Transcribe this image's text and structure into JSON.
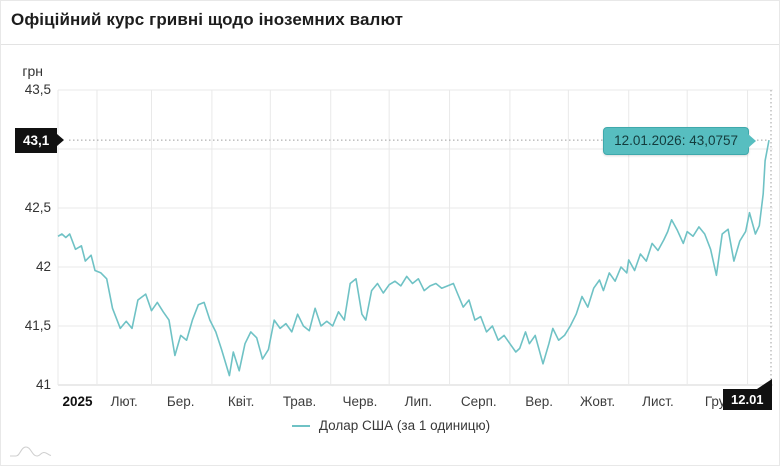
{
  "header": {
    "title": "Офіційний курс гривні щодо іноземних валют"
  },
  "chart": {
    "y_axis_title": "грн",
    "cursor": {
      "y_label": "43,1",
      "x_label": "12.01",
      "tooltip": "12.01.2026: 43,0757"
    },
    "legend": {
      "label": "Долар США (за 1 одиницю)"
    },
    "colors": {
      "line": "#6fc2c5",
      "tooltip_bg": "#57bec0",
      "tooltip_border": "#3fa9ac",
      "tooltip_text": "#143c3d",
      "grid": "#e9e9e9",
      "axis_line": "#d6d6d6",
      "crosshair": "#9f9f9f",
      "badge_bg": "#111111",
      "badge_text": "#ffffff"
    }
  },
  "chart_data": {
    "type": "line",
    "title": "Офіційний курс гривні щодо іноземних валют",
    "xlabel": "",
    "ylabel": "грн",
    "ylim": [
      41,
      43.5
    ],
    "grid": true,
    "legend_position": "bottom",
    "y_ticks": [
      43.5,
      43,
      42.5,
      42,
      41.5,
      41
    ],
    "y_tick_labels": [
      "43,5",
      "43",
      "42,5",
      "42",
      "41,5",
      "41"
    ],
    "x_range": [
      "2025-01-12",
      "2026-01-12"
    ],
    "x_tick_labels": [
      {
        "label": "2025",
        "anchor": "2025-01-22",
        "bold": true
      },
      {
        "label": "Лют.",
        "anchor": "2025-02-15",
        "bold": false
      },
      {
        "label": "Бер.",
        "anchor": "2025-03-16",
        "bold": false
      },
      {
        "label": "Квіт.",
        "anchor": "2025-04-16",
        "bold": false
      },
      {
        "label": "Трав.",
        "anchor": "2025-05-16",
        "bold": false
      },
      {
        "label": "Черв.",
        "anchor": "2025-06-16",
        "bold": false
      },
      {
        "label": "Лип.",
        "anchor": "2025-07-16",
        "bold": false
      },
      {
        "label": "Серп.",
        "anchor": "2025-08-16",
        "bold": false
      },
      {
        "label": "Вер.",
        "anchor": "2025-09-16",
        "bold": false
      },
      {
        "label": "Жовт.",
        "anchor": "2025-10-16",
        "bold": false
      },
      {
        "label": "Лист.",
        "anchor": "2025-11-16",
        "bold": false
      },
      {
        "label": "Гру.",
        "anchor": "2025-12-16",
        "bold": false
      }
    ],
    "series": [
      {
        "name": "Долар США (за 1 одиницю)",
        "points": [
          [
            "2025-01-12",
            42.26
          ],
          [
            "2025-01-14",
            42.28
          ],
          [
            "2025-01-16",
            42.25
          ],
          [
            "2025-01-18",
            42.28
          ],
          [
            "2025-01-21",
            42.15
          ],
          [
            "2025-01-24",
            42.18
          ],
          [
            "2025-01-26",
            42.05
          ],
          [
            "2025-01-29",
            42.1
          ],
          [
            "2025-01-31",
            41.97
          ],
          [
            "2025-02-03",
            41.95
          ],
          [
            "2025-02-06",
            41.9
          ],
          [
            "2025-02-09",
            41.65
          ],
          [
            "2025-02-13",
            41.48
          ],
          [
            "2025-02-16",
            41.54
          ],
          [
            "2025-02-19",
            41.48
          ],
          [
            "2025-02-22",
            41.72
          ],
          [
            "2025-02-26",
            41.77
          ],
          [
            "2025-03-01",
            41.63
          ],
          [
            "2025-03-04",
            41.7
          ],
          [
            "2025-03-07",
            41.62
          ],
          [
            "2025-03-10",
            41.55
          ],
          [
            "2025-03-13",
            41.25
          ],
          [
            "2025-03-16",
            41.42
          ],
          [
            "2025-03-19",
            41.38
          ],
          [
            "2025-03-22",
            41.55
          ],
          [
            "2025-03-25",
            41.68
          ],
          [
            "2025-03-28",
            41.7
          ],
          [
            "2025-03-31",
            41.55
          ],
          [
            "2025-04-03",
            41.45
          ],
          [
            "2025-04-06",
            41.3
          ],
          [
            "2025-04-10",
            41.08
          ],
          [
            "2025-04-12",
            41.28
          ],
          [
            "2025-04-15",
            41.12
          ],
          [
            "2025-04-18",
            41.35
          ],
          [
            "2025-04-21",
            41.45
          ],
          [
            "2025-04-24",
            41.4
          ],
          [
            "2025-04-27",
            41.22
          ],
          [
            "2025-04-30",
            41.3
          ],
          [
            "2025-05-03",
            41.55
          ],
          [
            "2025-05-06",
            41.48
          ],
          [
            "2025-05-09",
            41.52
          ],
          [
            "2025-05-12",
            41.45
          ],
          [
            "2025-05-15",
            41.6
          ],
          [
            "2025-05-18",
            41.5
          ],
          [
            "2025-05-21",
            41.46
          ],
          [
            "2025-05-24",
            41.65
          ],
          [
            "2025-05-27",
            41.5
          ],
          [
            "2025-05-30",
            41.54
          ],
          [
            "2025-06-02",
            41.5
          ],
          [
            "2025-06-05",
            41.62
          ],
          [
            "2025-06-08",
            41.55
          ],
          [
            "2025-06-11",
            41.86
          ],
          [
            "2025-06-14",
            41.9
          ],
          [
            "2025-06-17",
            41.6
          ],
          [
            "2025-06-19",
            41.55
          ],
          [
            "2025-06-22",
            41.8
          ],
          [
            "2025-06-25",
            41.86
          ],
          [
            "2025-06-28",
            41.78
          ],
          [
            "2025-07-01",
            41.85
          ],
          [
            "2025-07-04",
            41.88
          ],
          [
            "2025-07-07",
            41.84
          ],
          [
            "2025-07-10",
            41.92
          ],
          [
            "2025-07-13",
            41.86
          ],
          [
            "2025-07-16",
            41.9
          ],
          [
            "2025-07-19",
            41.8
          ],
          [
            "2025-07-22",
            41.84
          ],
          [
            "2025-07-25",
            41.86
          ],
          [
            "2025-07-28",
            41.82
          ],
          [
            "2025-07-31",
            41.84
          ],
          [
            "2025-08-03",
            41.86
          ],
          [
            "2025-08-05",
            41.78
          ],
          [
            "2025-08-08",
            41.66
          ],
          [
            "2025-08-11",
            41.72
          ],
          [
            "2025-08-14",
            41.55
          ],
          [
            "2025-08-17",
            41.58
          ],
          [
            "2025-08-20",
            41.45
          ],
          [
            "2025-08-23",
            41.5
          ],
          [
            "2025-08-26",
            41.38
          ],
          [
            "2025-08-29",
            41.42
          ],
          [
            "2025-09-01",
            41.35
          ],
          [
            "2025-09-04",
            41.28
          ],
          [
            "2025-09-06",
            41.31
          ],
          [
            "2025-09-09",
            41.45
          ],
          [
            "2025-09-11",
            41.35
          ],
          [
            "2025-09-14",
            41.42
          ],
          [
            "2025-09-18",
            41.18
          ],
          [
            "2025-09-21",
            41.35
          ],
          [
            "2025-09-23",
            41.48
          ],
          [
            "2025-09-26",
            41.38
          ],
          [
            "2025-09-29",
            41.42
          ],
          [
            "2025-10-02",
            41.5
          ],
          [
            "2025-10-05",
            41.6
          ],
          [
            "2025-10-08",
            41.75
          ],
          [
            "2025-10-11",
            41.66
          ],
          [
            "2025-10-14",
            41.82
          ],
          [
            "2025-10-17",
            41.89
          ],
          [
            "2025-10-19",
            41.8
          ],
          [
            "2025-10-22",
            41.95
          ],
          [
            "2025-10-25",
            41.88
          ],
          [
            "2025-10-28",
            42.0
          ],
          [
            "2025-10-31",
            41.95
          ],
          [
            "2025-11-01",
            42.06
          ],
          [
            "2025-11-04",
            41.97
          ],
          [
            "2025-11-07",
            42.11
          ],
          [
            "2025-11-10",
            42.05
          ],
          [
            "2025-11-13",
            42.2
          ],
          [
            "2025-11-16",
            42.14
          ],
          [
            "2025-11-19",
            42.23
          ],
          [
            "2025-11-21",
            42.3
          ],
          [
            "2025-11-23",
            42.4
          ],
          [
            "2025-11-26",
            42.31
          ],
          [
            "2025-11-29",
            42.2
          ],
          [
            "2025-12-01",
            42.3
          ],
          [
            "2025-12-04",
            42.26
          ],
          [
            "2025-12-07",
            42.34
          ],
          [
            "2025-12-10",
            42.28
          ],
          [
            "2025-12-13",
            42.15
          ],
          [
            "2025-12-16",
            41.93
          ],
          [
            "2025-12-19",
            42.28
          ],
          [
            "2025-12-22",
            42.32
          ],
          [
            "2025-12-25",
            42.05
          ],
          [
            "2025-12-28",
            42.22
          ],
          [
            "2025-12-31",
            42.3
          ],
          [
            "2026-01-02",
            42.46
          ],
          [
            "2026-01-05",
            42.28
          ],
          [
            "2026-01-07",
            42.35
          ],
          [
            "2026-01-09",
            42.62
          ],
          [
            "2026-01-10",
            42.9
          ],
          [
            "2026-01-12",
            43.0757
          ]
        ],
        "last_point": {
          "date": "2026-01-12",
          "value": 43.0757
        }
      }
    ],
    "annotations": {
      "cursor_value_label": "43,1",
      "cursor_date_label": "12.01",
      "tooltip_text": "12.01.2026: 43,0757"
    }
  }
}
